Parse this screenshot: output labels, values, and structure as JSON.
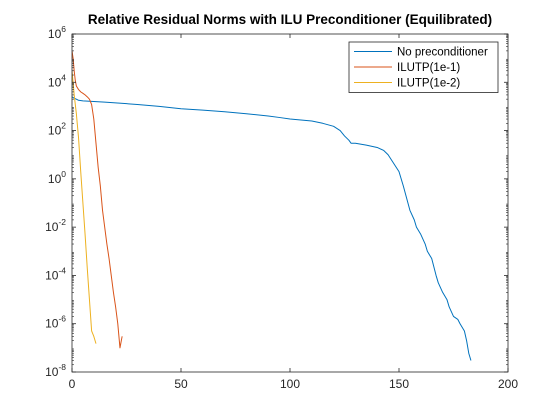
{
  "chart_data": {
    "type": "line",
    "title": "Relative Residual Norms with ILU Preconditioner (Equilibrated)",
    "xlabel": "",
    "ylabel": "",
    "xlim": [
      0,
      200
    ],
    "ylim": [
      1e-08,
      1000000.0
    ],
    "yscale": "log",
    "grid": false,
    "legend_position": "top-right",
    "x_ticks": [
      0,
      50,
      100,
      150,
      200
    ],
    "x_tick_labels": [
      "0",
      "50",
      "100",
      "150",
      "200"
    ],
    "y_ticks": [
      {
        "value": 1e-08,
        "base": "10",
        "exp": "-8"
      },
      {
        "value": 1e-06,
        "base": "10",
        "exp": "-6"
      },
      {
        "value": 0.0001,
        "base": "10",
        "exp": "-4"
      },
      {
        "value": 0.01,
        "base": "10",
        "exp": "-2"
      },
      {
        "value": 1.0,
        "base": "10",
        "exp": "0"
      },
      {
        "value": 100.0,
        "base": "10",
        "exp": "2"
      },
      {
        "value": 10000.0,
        "base": "10",
        "exp": "4"
      },
      {
        "value": 1000000.0,
        "base": "10",
        "exp": "6"
      }
    ],
    "series": [
      {
        "name": "No preconditioner",
        "color": "#0072BD",
        "x": [
          0,
          1,
          2,
          3,
          5,
          10,
          15,
          20,
          25,
          30,
          40,
          50,
          60,
          70,
          80,
          90,
          95,
          100,
          110,
          115,
          120,
          123,
          125,
          127,
          128,
          130,
          135,
          140,
          143,
          145,
          150,
          152,
          155,
          157,
          158,
          160,
          162,
          163,
          165,
          167,
          168,
          170,
          172,
          173,
          175,
          177,
          178,
          180,
          181,
          182,
          183
        ],
        "y": [
          2500,
          2200,
          2000,
          1800,
          1700,
          1600,
          1500,
          1400,
          1300,
          1200,
          1000,
          800,
          700,
          600,
          500,
          400,
          350,
          300,
          250,
          200,
          150,
          100,
          60,
          40,
          30,
          30,
          25,
          20,
          15,
          10,
          2,
          0.5,
          0.05,
          0.02,
          0.01,
          0.005,
          0.002,
          0.001,
          0.0005,
          0.0001,
          5e-05,
          2e-05,
          1e-05,
          5e-06,
          2e-06,
          1.5e-06,
          1e-06,
          5e-07,
          2e-07,
          6e-08,
          3e-08
        ]
      },
      {
        "name": "ILUTP(1e-1)",
        "color": "#D95319",
        "x": [
          0,
          0.5,
          1,
          1.5,
          2,
          3,
          4,
          5,
          6,
          7,
          8,
          9,
          10,
          11,
          12,
          13,
          14,
          15,
          16,
          17,
          18,
          19,
          20,
          21,
          22,
          23
        ],
        "y": [
          200000,
          100000,
          30000,
          12000,
          7000,
          5000,
          4000,
          3500,
          3000,
          2500,
          2000,
          1200,
          300,
          30,
          3,
          0.5,
          0.05,
          0.01,
          0.002,
          0.0005,
          0.0001,
          2e-05,
          5e-06,
          1e-06,
          1e-07,
          3e-07
        ]
      },
      {
        "name": "ILUTP(1e-2)",
        "color": "#EDB120",
        "x": [
          0,
          0.5,
          1,
          2,
          3,
          4,
          5,
          6,
          7,
          8,
          9,
          10,
          11
        ],
        "y": [
          30000,
          10000,
          3000,
          500,
          50,
          2,
          0.1,
          0.005,
          0.0002,
          1e-05,
          5e-07,
          3e-07,
          1.5e-07
        ]
      }
    ]
  }
}
